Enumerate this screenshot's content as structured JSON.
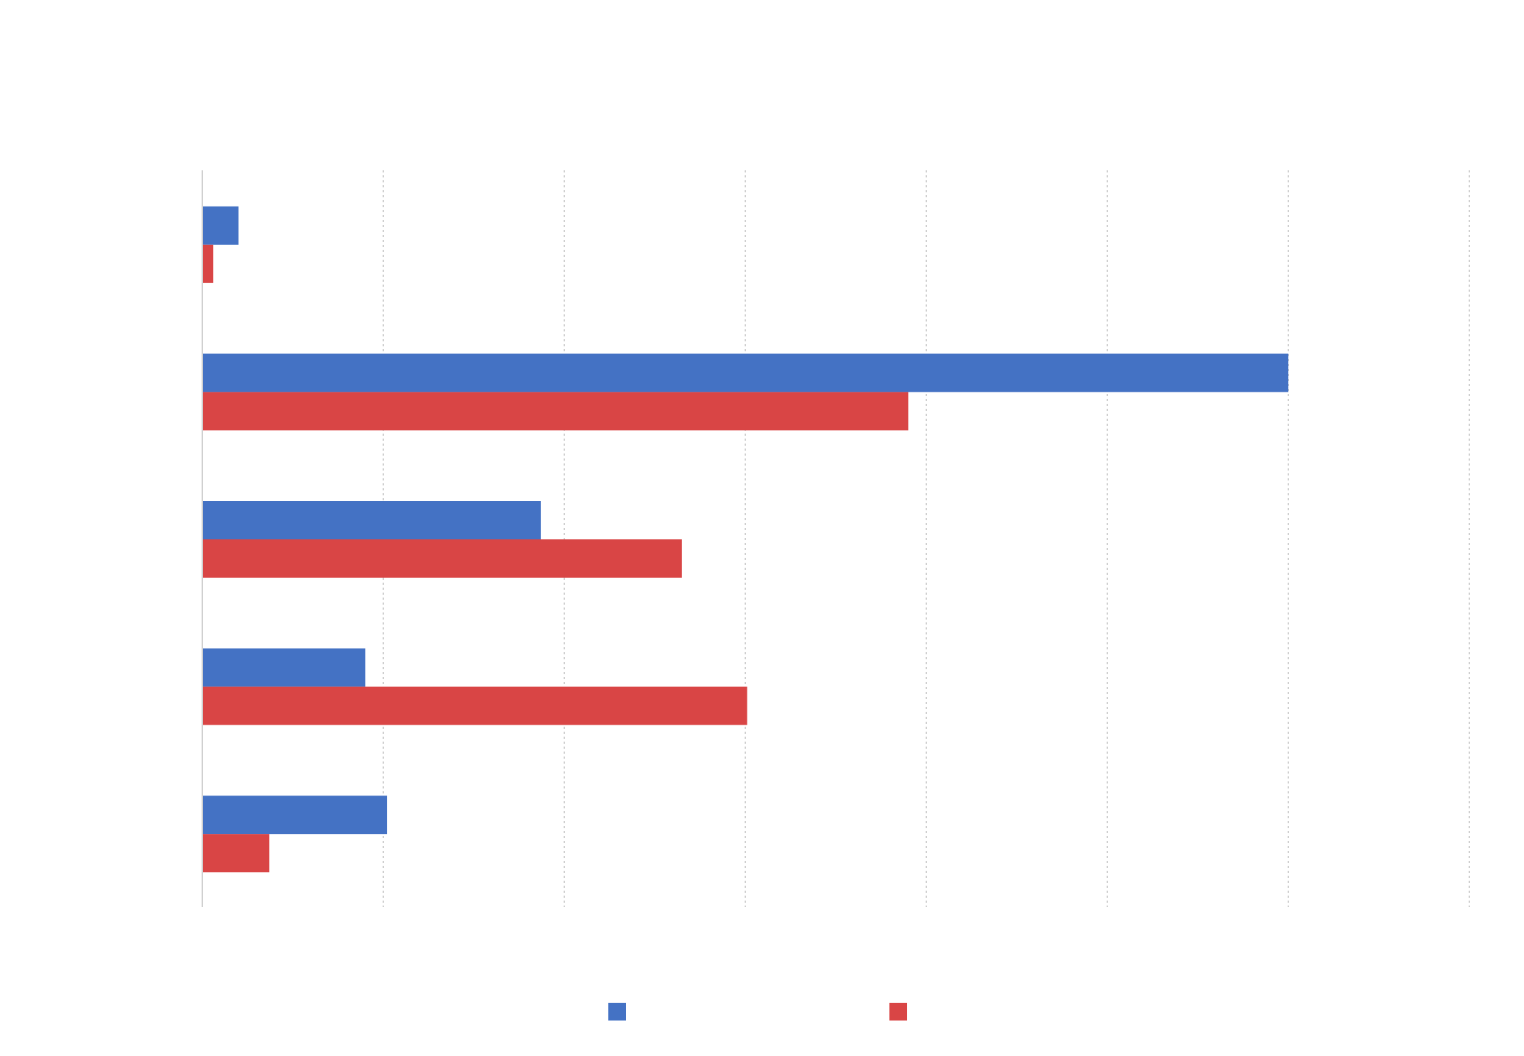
{
  "chart_data": {
    "type": "bar",
    "orientation": "horizontal",
    "title": "",
    "xlabel": "",
    "ylabel": "",
    "categories": [
      "",
      "",
      "",
      "",
      ""
    ],
    "series": [
      {
        "values": [
          0.2,
          6.0,
          1.87,
          0.9,
          1.02
        ],
        "color": "#4472c4"
      },
      {
        "values": [
          0.06,
          3.9,
          2.65,
          3.01,
          0.37
        ],
        "color": "#d94545"
      }
    ],
    "xlim": [
      0,
      7
    ],
    "grid": true,
    "grid_style": "dotted",
    "legend_position": "bottom"
  }
}
